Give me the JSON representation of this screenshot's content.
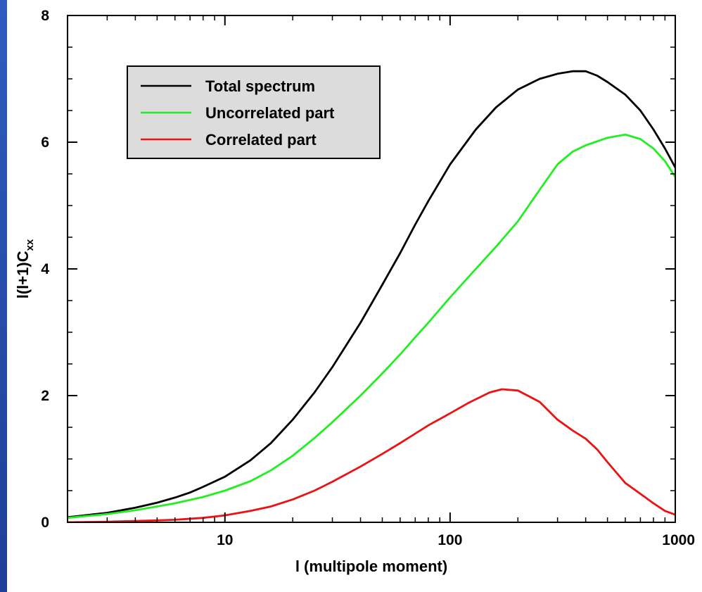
{
  "colors": {
    "background_blue": "#2f5fbf",
    "legend_fill": "#dcdcdc"
  },
  "chart_data": {
    "type": "line",
    "title": "",
    "xlabel": "l (multipole moment)",
    "ylabel_main": "l(l+1)C",
    "ylabel_sub": "xx",
    "xscale": "log",
    "xlim": [
      2,
      1000
    ],
    "ylim": [
      0,
      8
    ],
    "x_ticks": [
      {
        "value": 10,
        "label": "10"
      },
      {
        "value": 100,
        "label": "100"
      },
      {
        "value": 1000,
        "label": "1000"
      }
    ],
    "y_ticks": [
      {
        "value": 0,
        "label": "0"
      },
      {
        "value": 2,
        "label": "2"
      },
      {
        "value": 4,
        "label": "4"
      },
      {
        "value": 6,
        "label": "6"
      },
      {
        "value": 8,
        "label": "8"
      }
    ],
    "grid": false,
    "legend_position": "top-left",
    "series": [
      {
        "name": "Total spectrum",
        "color": "#000000",
        "points": [
          [
            2,
            0.08
          ],
          [
            3,
            0.15
          ],
          [
            4,
            0.23
          ],
          [
            5,
            0.31
          ],
          [
            6,
            0.39
          ],
          [
            7,
            0.47
          ],
          [
            8,
            0.56
          ],
          [
            10,
            0.72
          ],
          [
            13,
            0.98
          ],
          [
            16,
            1.25
          ],
          [
            20,
            1.62
          ],
          [
            25,
            2.05
          ],
          [
            30,
            2.45
          ],
          [
            40,
            3.15
          ],
          [
            50,
            3.75
          ],
          [
            60,
            4.25
          ],
          [
            70,
            4.7
          ],
          [
            80,
            5.07
          ],
          [
            100,
            5.65
          ],
          [
            130,
            6.2
          ],
          [
            160,
            6.55
          ],
          [
            200,
            6.83
          ],
          [
            250,
            7.0
          ],
          [
            300,
            7.08
          ],
          [
            350,
            7.12
          ],
          [
            400,
            7.12
          ],
          [
            450,
            7.05
          ],
          [
            500,
            6.95
          ],
          [
            600,
            6.75
          ],
          [
            700,
            6.5
          ],
          [
            800,
            6.2
          ],
          [
            900,
            5.9
          ],
          [
            1000,
            5.6
          ]
        ]
      },
      {
        "name": "Uncorrelated part",
        "color": "#22ee22",
        "points": [
          [
            2,
            0.07
          ],
          [
            3,
            0.13
          ],
          [
            4,
            0.19
          ],
          [
            5,
            0.25
          ],
          [
            6,
            0.3
          ],
          [
            8,
            0.4
          ],
          [
            10,
            0.5
          ],
          [
            13,
            0.65
          ],
          [
            16,
            0.82
          ],
          [
            20,
            1.05
          ],
          [
            25,
            1.33
          ],
          [
            30,
            1.58
          ],
          [
            40,
            2.0
          ],
          [
            50,
            2.35
          ],
          [
            60,
            2.65
          ],
          [
            70,
            2.92
          ],
          [
            80,
            3.15
          ],
          [
            100,
            3.55
          ],
          [
            130,
            4.0
          ],
          [
            160,
            4.35
          ],
          [
            200,
            4.75
          ],
          [
            250,
            5.25
          ],
          [
            300,
            5.65
          ],
          [
            350,
            5.85
          ],
          [
            400,
            5.95
          ],
          [
            500,
            6.07
          ],
          [
            600,
            6.12
          ],
          [
            700,
            6.05
          ],
          [
            800,
            5.9
          ],
          [
            900,
            5.7
          ],
          [
            1000,
            5.45
          ]
        ]
      },
      {
        "name": "Correlated part",
        "color": "#ee1111",
        "points": [
          [
            2,
            0.0
          ],
          [
            3,
            0.01
          ],
          [
            4,
            0.02
          ],
          [
            5,
            0.03
          ],
          [
            6,
            0.04
          ],
          [
            8,
            0.07
          ],
          [
            10,
            0.11
          ],
          [
            13,
            0.18
          ],
          [
            16,
            0.25
          ],
          [
            20,
            0.36
          ],
          [
            25,
            0.5
          ],
          [
            30,
            0.64
          ],
          [
            40,
            0.88
          ],
          [
            50,
            1.08
          ],
          [
            60,
            1.25
          ],
          [
            70,
            1.4
          ],
          [
            80,
            1.53
          ],
          [
            100,
            1.72
          ],
          [
            120,
            1.88
          ],
          [
            150,
            2.05
          ],
          [
            170,
            2.1
          ],
          [
            200,
            2.08
          ],
          [
            250,
            1.9
          ],
          [
            300,
            1.62
          ],
          [
            350,
            1.45
          ],
          [
            400,
            1.32
          ],
          [
            450,
            1.15
          ],
          [
            500,
            0.95
          ],
          [
            600,
            0.62
          ],
          [
            700,
            0.45
          ],
          [
            800,
            0.3
          ],
          [
            900,
            0.18
          ],
          [
            1000,
            0.12
          ]
        ]
      }
    ]
  }
}
